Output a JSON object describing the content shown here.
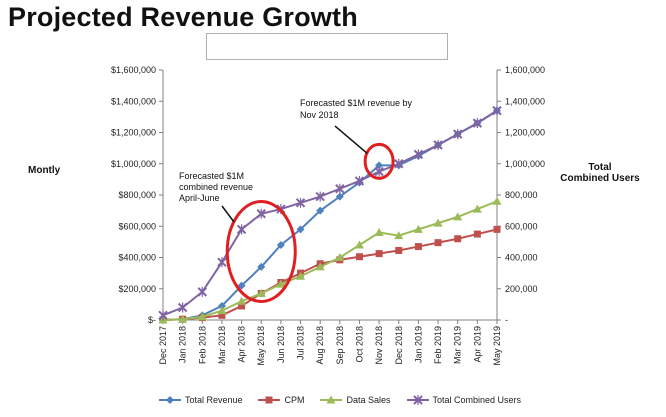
{
  "page": {
    "title": "Projected Revenue Growth"
  },
  "chart_data": {
    "type": "line",
    "title": "",
    "ylabel_left": "Montly",
    "ylabel_right_lines": [
      "Total",
      "Combined Users"
    ],
    "ylim": [
      0,
      1600000
    ],
    "yticks_left": [
      "$-",
      "$200,000",
      "$400,000",
      "$600,000",
      "$800,000",
      "$1,000,000",
      "$1,200,000",
      "$1,400,000",
      "$1,600,000"
    ],
    "yticks_right": [
      "-",
      "200,000",
      "400,000",
      "600,000",
      "800,000",
      "1,000,000",
      "1,200,000",
      "1,400,000",
      "1,600,000"
    ],
    "categories": [
      "Dec 2017",
      "Jan 2018",
      "Feb 2018",
      "Mar 2018",
      "Apr 2018",
      "May 2018",
      "Jun 2018",
      "Jul 2018",
      "Aug 2018",
      "Sep 2018",
      "Oct 2018",
      "Nov 2018",
      "Dec 2018",
      "Jan 2019",
      "Feb 2019",
      "Mar 2019",
      "Apr 2019",
      "May 2019"
    ],
    "series": [
      {
        "name": "Total Revenue",
        "color": "#4f81bd",
        "marker": "diamond",
        "values": [
          0,
          5000,
          30000,
          90000,
          220000,
          340000,
          480000,
          580000,
          700000,
          790000,
          880000,
          990000,
          990000,
          1050000,
          1120000,
          1190000,
          1260000,
          1340000
        ]
      },
      {
        "name": "CPM",
        "color": "#c0504d",
        "marker": "square",
        "values": [
          0,
          5000,
          15000,
          30000,
          90000,
          170000,
          240000,
          300000,
          360000,
          385000,
          405000,
          425000,
          445000,
          470000,
          495000,
          520000,
          550000,
          580000
        ]
      },
      {
        "name": "Data Sales",
        "color": "#9bbb59",
        "marker": "triangle",
        "values": [
          0,
          5000,
          20000,
          60000,
          120000,
          170000,
          230000,
          280000,
          340000,
          400000,
          480000,
          560000,
          540000,
          580000,
          620000,
          660000,
          710000,
          760000
        ]
      },
      {
        "name": "Total Combined Users",
        "color": "#8064a2",
        "marker": "x",
        "values": [
          30000,
          80000,
          180000,
          370000,
          580000,
          680000,
          710000,
          750000,
          790000,
          840000,
          890000,
          950000,
          1000000,
          1060000,
          1120000,
          1190000,
          1260000,
          1340000
        ]
      }
    ],
    "annotations": [
      {
        "id": "nov",
        "lines": [
          "Forecasted $1M revenue by",
          "Nov 2018"
        ]
      },
      {
        "id": "aprjun",
        "lines": [
          "Forecasted $1M",
          "combined revenue",
          "April-June"
        ]
      }
    ],
    "legend_position": "bottom"
  }
}
